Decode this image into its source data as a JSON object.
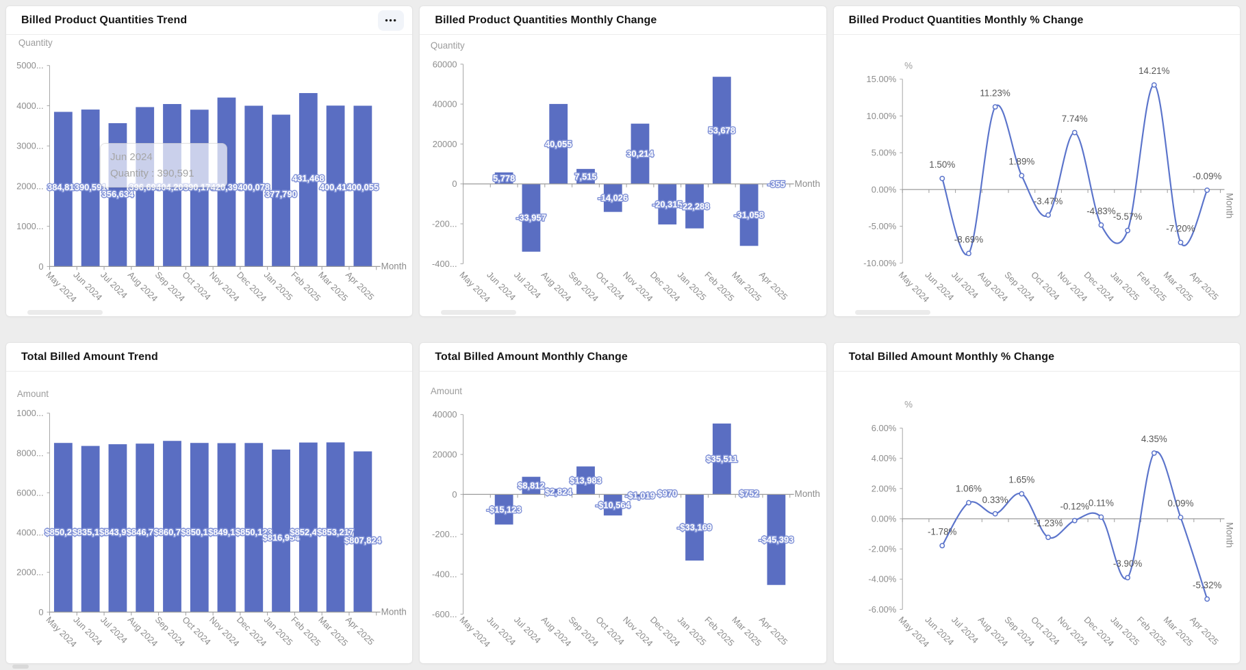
{
  "months": [
    "May 2024",
    "Jun 2024",
    "Jul 2024",
    "Aug 2024",
    "Sep 2024",
    "Oct 2024",
    "Nov 2024",
    "Dec 2024",
    "Jan 2025",
    "Feb 2025",
    "Mar 2025",
    "Apr 2025"
  ],
  "tooltip": {
    "title": "Jun 2024",
    "label": "Quantity",
    "separator": " : ",
    "value": "390,591"
  },
  "more_button": {
    "label": "•••"
  },
  "colors": {
    "bar": "#5a6ec2",
    "bar_label_halo": "#8394d8",
    "line": "#5b74cb",
    "axis": "#a6a6a6",
    "zero_line": "#9b9b9b"
  },
  "chart_data": [
    {
      "type": "bar",
      "title": "Billed Product Quantities Trend",
      "ylabel": "Quantity",
      "xlabel": "Month",
      "ylim": [
        0,
        500000
      ],
      "yticks": [
        {
          "v": 500000,
          "t": "5000..."
        },
        {
          "v": 400000,
          "t": "4000..."
        },
        {
          "v": 300000,
          "t": "3000..."
        },
        {
          "v": 200000,
          "t": "2000..."
        },
        {
          "v": 100000,
          "t": "1000..."
        },
        {
          "v": 0,
          "t": "0"
        }
      ],
      "values": [
        384813,
        390591,
        356634,
        396690,
        404205,
        390179,
        420393,
        400078,
        377790,
        431468,
        400410,
        400055
      ],
      "labels": [
        "384,813",
        "390,591",
        "356,634",
        "396,690",
        "404,205",
        "390,179",
        "420,393",
        "400,078",
        "377,790",
        "431,468",
        "400,410",
        "400,055"
      ]
    },
    {
      "type": "bar",
      "title": "Billed Product Quantities Monthly Change",
      "ylabel": "Quantity",
      "xlabel": "Month",
      "ylim": [
        -40000,
        60000
      ],
      "yticks": [
        {
          "v": 60000,
          "t": "60000"
        },
        {
          "v": 40000,
          "t": "40000"
        },
        {
          "v": 20000,
          "t": "20000"
        },
        {
          "v": 0,
          "t": "0"
        },
        {
          "v": -20000,
          "t": "-200..."
        },
        {
          "v": -40000,
          "t": "-400..."
        }
      ],
      "values": [
        null,
        5778,
        -33957,
        40055,
        7515,
        -14026,
        30214,
        -20315,
        -22288,
        53678,
        -31058,
        -355
      ],
      "labels": [
        "",
        "5,778",
        "-33,957",
        "40,055",
        "7,515",
        "-14,026",
        "30,214",
        "-20,315",
        "-22,288",
        "53,678",
        "-31,058",
        "-355"
      ]
    },
    {
      "type": "line",
      "title": "Billed Product Quantities Monthly % Change",
      "ylabel": "%",
      "xlabel": "Month",
      "ylim": [
        -10,
        15
      ],
      "yticks": [
        {
          "v": 15,
          "t": "15.00%"
        },
        {
          "v": 10,
          "t": "10.00%"
        },
        {
          "v": 5,
          "t": "5.00%"
        },
        {
          "v": 0,
          "t": "0.00%"
        },
        {
          "v": -5,
          "t": "-5.00%"
        },
        {
          "v": -10,
          "t": "-10.00%"
        }
      ],
      "values": [
        null,
        1.5,
        -8.69,
        11.23,
        1.89,
        -3.47,
        7.74,
        -4.83,
        -5.57,
        14.21,
        -7.2,
        -0.09
      ],
      "labels": [
        "",
        "1.50%",
        "-8.69%",
        "11.23%",
        "1.89%",
        "-3.47%",
        "7.74%",
        "-4.83%",
        "-5.57%",
        "14.21%",
        "-7.20%",
        "-0.09%"
      ]
    },
    {
      "type": "bar",
      "title": "Total Billed Amount Trend",
      "ylabel": "Amount",
      "xlabel": "Month",
      "ylim": [
        0,
        1000000
      ],
      "yticks": [
        {
          "v": 1000000,
          "t": "1000..."
        },
        {
          "v": 800000,
          "t": "8000..."
        },
        {
          "v": 600000,
          "t": "6000..."
        },
        {
          "v": 400000,
          "t": "4000..."
        },
        {
          "v": 200000,
          "t": "2000..."
        },
        {
          "v": 0,
          "t": "0"
        }
      ],
      "values": [
        850240,
        835117,
        843929,
        846753,
        860736,
        850172,
        849153,
        850123,
        816954,
        852465,
        853217,
        807824
      ],
      "labels": [
        "$850,240",
        "$835,117",
        "$843,929",
        "$846,753",
        "$860,736",
        "$850,172",
        "$849,153",
        "$850,123",
        "$816,954",
        "$852,465",
        "$853,217",
        "$807,824"
      ]
    },
    {
      "type": "bar",
      "title": "Total Billed Amount Monthly Change",
      "ylabel": "Amount",
      "xlabel": "Month",
      "ylim": [
        -60000,
        40000
      ],
      "yticks": [
        {
          "v": 40000,
          "t": "40000"
        },
        {
          "v": 20000,
          "t": "20000"
        },
        {
          "v": 0,
          "t": "0"
        },
        {
          "v": -20000,
          "t": "-200..."
        },
        {
          "v": -40000,
          "t": "-400..."
        },
        {
          "v": -60000,
          "t": "-600..."
        }
      ],
      "values": [
        null,
        -15123,
        8812,
        2824,
        13983,
        -10564,
        -1019,
        970,
        -33169,
        35511,
        752,
        -45393
      ],
      "labels": [
        "",
        "-$15,123",
        "$8,812",
        "$2,824",
        "$13,983",
        "-$10,564",
        "-$1,019",
        "$970",
        "-$33,169",
        "$35,511",
        "$752",
        "-$45,393"
      ]
    },
    {
      "type": "line",
      "title": "Total Billed Amount Monthly % Change",
      "ylabel": "%",
      "xlabel": "Month",
      "ylim": [
        -6,
        6
      ],
      "yticks": [
        {
          "v": 6,
          "t": "6.00%"
        },
        {
          "v": 4,
          "t": "4.00%"
        },
        {
          "v": 2,
          "t": "2.00%"
        },
        {
          "v": 0,
          "t": "0.00%"
        },
        {
          "v": -2,
          "t": "-2.00%"
        },
        {
          "v": -4,
          "t": "-4.00%"
        },
        {
          "v": -6,
          "t": "-6.00%"
        }
      ],
      "values": [
        null,
        -1.78,
        1.06,
        0.33,
        1.65,
        -1.23,
        -0.12,
        0.11,
        -3.9,
        4.35,
        0.09,
        -5.32
      ],
      "labels": [
        "",
        "-1.78%",
        "1.06%",
        "0.33%",
        "1.65%",
        "-1.23%",
        "-0.12%",
        "0.11%",
        "-3.90%",
        "4.35%",
        "0.09%",
        "-5.32%"
      ]
    }
  ]
}
